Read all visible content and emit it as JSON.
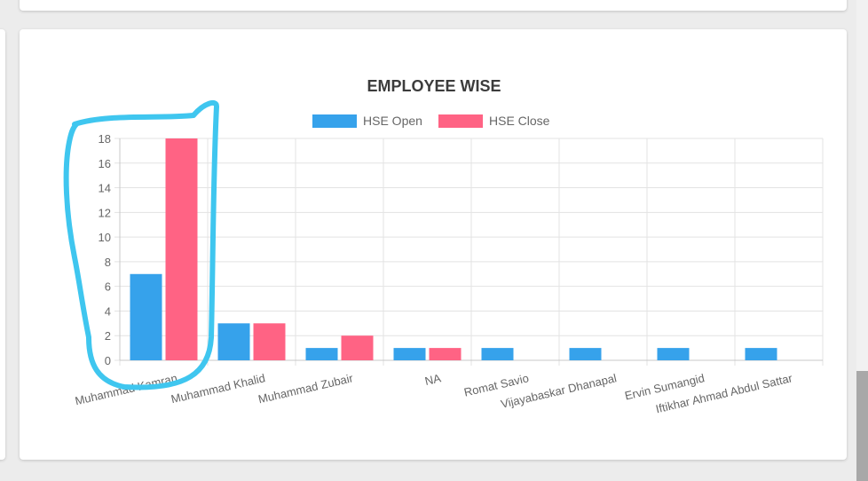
{
  "chart_data": {
    "type": "bar",
    "title": "EMPLOYEE WISE",
    "xlabel": "",
    "ylabel": "",
    "ylim": [
      0,
      18
    ],
    "y_ticks": [
      "0",
      "2",
      "4",
      "6",
      "8",
      "10",
      "12",
      "14",
      "16",
      "18"
    ],
    "categories": [
      "Muhammad Kamran",
      "Muhammad Khalid",
      "Muhammad Zubair",
      "NA",
      "Romat Savio",
      "Vijayabaskar Dhanapal",
      "Ervin Sumangid",
      "Iftikhar Ahmad Abdul Sattar"
    ],
    "series": [
      {
        "name": "HSE Open",
        "color": "#36a2eb",
        "values": [
          7,
          3,
          1,
          1,
          1,
          1,
          1,
          1
        ]
      },
      {
        "name": "HSE Close",
        "color": "#ff6384",
        "values": [
          18,
          3,
          2,
          1,
          0,
          0,
          0,
          0
        ]
      }
    ],
    "grid": true,
    "legend_position": "top"
  },
  "annotation": {
    "type": "freehand-outline",
    "color": "#3fc6ef"
  }
}
